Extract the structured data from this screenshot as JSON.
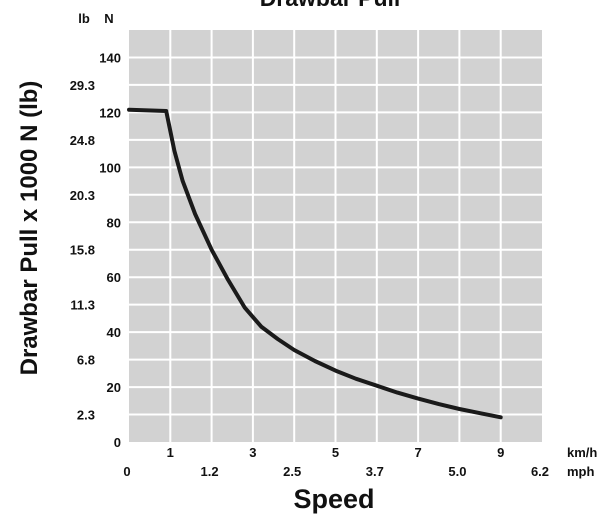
{
  "chart_data": {
    "type": "line",
    "title": "Drawbar Pull",
    "xlabel": "Speed",
    "ylabel": "Drawbar Pull x 1000 N (lb)",
    "y_unit_primary": "N",
    "y_unit_secondary": "lb",
    "x_unit_primary": "km/h",
    "x_unit_secondary": "mph",
    "xlim": [
      0,
      10
    ],
    "ylim": [
      0,
      150
    ],
    "grid": true,
    "x_ticks_primary": [
      {
        "value": 1,
        "label": "1"
      },
      {
        "value": 3,
        "label": "3"
      },
      {
        "value": 5,
        "label": "5"
      },
      {
        "value": 7,
        "label": "7"
      },
      {
        "value": 9,
        "label": "9"
      }
    ],
    "x_ticks_secondary": [
      {
        "value": 0,
        "label": "0"
      },
      {
        "value": 2,
        "label": "1.2"
      },
      {
        "value": 4,
        "label": "2.5"
      },
      {
        "value": 6,
        "label": "3.7"
      },
      {
        "value": 8,
        "label": "5.0"
      },
      {
        "value": 10,
        "label": "6.2"
      }
    ],
    "y_ticks_primary": [
      {
        "value": 0,
        "label": "0"
      },
      {
        "value": 20,
        "label": "20"
      },
      {
        "value": 40,
        "label": "40"
      },
      {
        "value": 60,
        "label": "60"
      },
      {
        "value": 80,
        "label": "80"
      },
      {
        "value": 100,
        "label": "100"
      },
      {
        "value": 120,
        "label": "120"
      },
      {
        "value": 140,
        "label": "140"
      }
    ],
    "y_ticks_secondary": [
      {
        "value": 10,
        "label": "2.3"
      },
      {
        "value": 30,
        "label": "6.8"
      },
      {
        "value": 50,
        "label": "11.3"
      },
      {
        "value": 70,
        "label": "15.8"
      },
      {
        "value": 90,
        "label": "20.3"
      },
      {
        "value": 110,
        "label": "24.8"
      },
      {
        "value": 130,
        "label": "29.3"
      }
    ],
    "series": [
      {
        "color": "#1a1a1a",
        "x": [
          0,
          0.9,
          1.1,
          1.3,
          1.6,
          2.0,
          2.4,
          2.8,
          3.2,
          3.6,
          4.0,
          4.5,
          5.0,
          5.5,
          6.0,
          6.5,
          7.0,
          7.5,
          8.0,
          8.5,
          9.0
        ],
        "y": [
          121,
          120.5,
          106,
          95,
          83,
          70,
          59,
          49,
          42,
          37.5,
          33.5,
          29.5,
          26,
          23,
          20.5,
          18,
          15.8,
          13.8,
          12,
          10.5,
          9
        ]
      }
    ]
  },
  "colors": {
    "plot_background": "#d2d2d2",
    "grid": "#ffffff",
    "line": "#1a1a1a",
    "text": "#111111"
  }
}
